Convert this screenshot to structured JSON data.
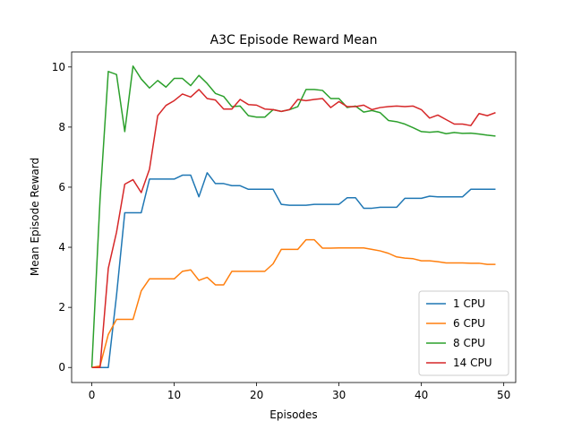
{
  "chart_data": {
    "type": "line",
    "title": "A3C Episode Reward Mean",
    "xlabel": "Episodes",
    "ylabel": "Mean Episode Reward",
    "xlim": [
      -2.45,
      51.45
    ],
    "ylim": [
      -0.5,
      10.5
    ],
    "xticks": [
      0,
      10,
      20,
      30,
      40,
      50
    ],
    "yticks": [
      0,
      2,
      4,
      6,
      8,
      10
    ],
    "grid": false,
    "legend_position": "lower-right",
    "x": [
      0,
      1,
      2,
      3,
      4,
      5,
      6,
      7,
      8,
      9,
      10,
      11,
      12,
      13,
      14,
      15,
      16,
      17,
      18,
      19,
      20,
      21,
      22,
      23,
      24,
      25,
      26,
      27,
      28,
      29,
      30,
      31,
      32,
      33,
      34,
      35,
      36,
      37,
      38,
      39,
      40,
      41,
      42,
      43,
      44,
      45,
      46,
      47,
      48,
      49
    ],
    "series": [
      {
        "name": "1 CPU",
        "color": "#1f77b4",
        "values": [
          0,
          0,
          0,
          2.4,
          5.15,
          5.15,
          5.15,
          6.27,
          6.27,
          6.27,
          6.27,
          6.4,
          6.4,
          5.68,
          6.48,
          6.12,
          6.12,
          6.05,
          6.05,
          5.93,
          5.93,
          5.93,
          5.93,
          5.43,
          5.4,
          5.4,
          5.4,
          5.43,
          5.43,
          5.43,
          5.43,
          5.65,
          5.65,
          5.3,
          5.3,
          5.33,
          5.33,
          5.33,
          5.63,
          5.63,
          5.63,
          5.7,
          5.68,
          5.68,
          5.68,
          5.68,
          5.93,
          5.93,
          5.93,
          5.93
        ]
      },
      {
        "name": "6 CPU",
        "color": "#ff7f0e",
        "values": [
          0,
          0.05,
          1.1,
          1.6,
          1.6,
          1.6,
          2.55,
          2.95,
          2.95,
          2.95,
          2.95,
          3.2,
          3.25,
          2.9,
          3.0,
          2.75,
          2.75,
          3.2,
          3.2,
          3.2,
          3.2,
          3.2,
          3.45,
          3.93,
          3.93,
          3.93,
          4.25,
          4.25,
          3.97,
          3.97,
          3.98,
          3.98,
          3.98,
          3.98,
          3.93,
          3.88,
          3.8,
          3.68,
          3.64,
          3.62,
          3.55,
          3.55,
          3.52,
          3.48,
          3.48,
          3.48,
          3.47,
          3.47,
          3.43,
          3.43
        ]
      },
      {
        "name": "8 CPU",
        "color": "#2ca02c",
        "values": [
          0,
          5.6,
          9.85,
          9.75,
          7.85,
          10.03,
          9.6,
          9.3,
          9.55,
          9.33,
          9.62,
          9.62,
          9.38,
          9.72,
          9.45,
          9.12,
          9.02,
          8.68,
          8.7,
          8.38,
          8.33,
          8.33,
          8.58,
          8.52,
          8.58,
          8.68,
          9.25,
          9.25,
          9.22,
          8.95,
          8.95,
          8.65,
          8.7,
          8.5,
          8.55,
          8.48,
          8.22,
          8.18,
          8.1,
          7.98,
          7.85,
          7.83,
          7.85,
          7.78,
          7.82,
          7.79,
          7.8,
          7.77,
          7.73,
          7.7
        ]
      },
      {
        "name": "14 CPU",
        "color": "#d62728",
        "values": [
          0,
          0,
          3.3,
          4.5,
          6.1,
          6.25,
          5.82,
          6.6,
          8.38,
          8.72,
          8.88,
          9.1,
          9.0,
          9.25,
          8.95,
          8.9,
          8.6,
          8.6,
          8.92,
          8.75,
          8.73,
          8.6,
          8.58,
          8.52,
          8.58,
          8.92,
          8.88,
          8.92,
          8.95,
          8.65,
          8.85,
          8.68,
          8.68,
          8.73,
          8.58,
          8.65,
          8.68,
          8.7,
          8.68,
          8.7,
          8.58,
          8.3,
          8.4,
          8.25,
          8.1,
          8.1,
          8.05,
          8.45,
          8.38,
          8.48
        ]
      }
    ]
  }
}
